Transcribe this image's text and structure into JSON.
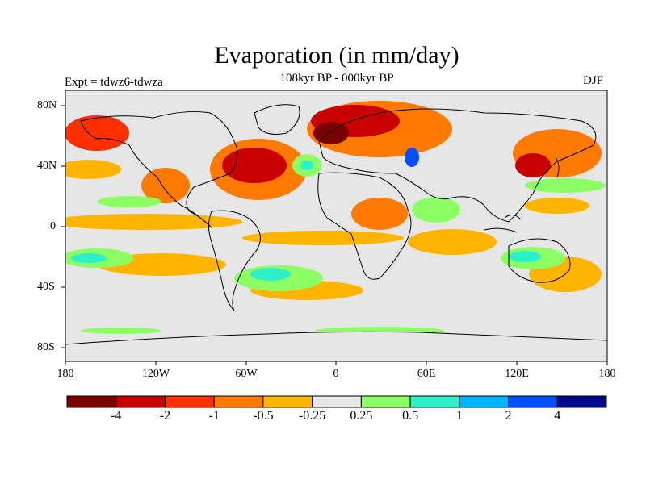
{
  "title": "Evaporation (in mm/day)",
  "subtitle": "108kyr BP - 000kyr BP",
  "experiment": "Expt = tdwz6-tdwza",
  "season": "DJF",
  "map": {
    "lat_ticks": [
      "80N",
      "40N",
      "0",
      "40S",
      "80S"
    ],
    "lon_ticks": [
      "180",
      "120W",
      "60W",
      "0",
      "60E",
      "120E",
      "180"
    ]
  },
  "colorbar": {
    "colors": [
      "#7a0000",
      "#c80000",
      "#ff3000",
      "#ff7a00",
      "#ffb400",
      "#e6e6e6",
      "#8cff64",
      "#2cf0c8",
      "#00b4ff",
      "#0050ff",
      "#000a8c"
    ],
    "labels": [
      "-4",
      "-2",
      "-1",
      "-0.5",
      "-0.25",
      "0.25",
      "0.5",
      "1",
      "2",
      "4"
    ]
  },
  "colors": {
    "land": "#e6e6e6",
    "coast": "#000000"
  }
}
